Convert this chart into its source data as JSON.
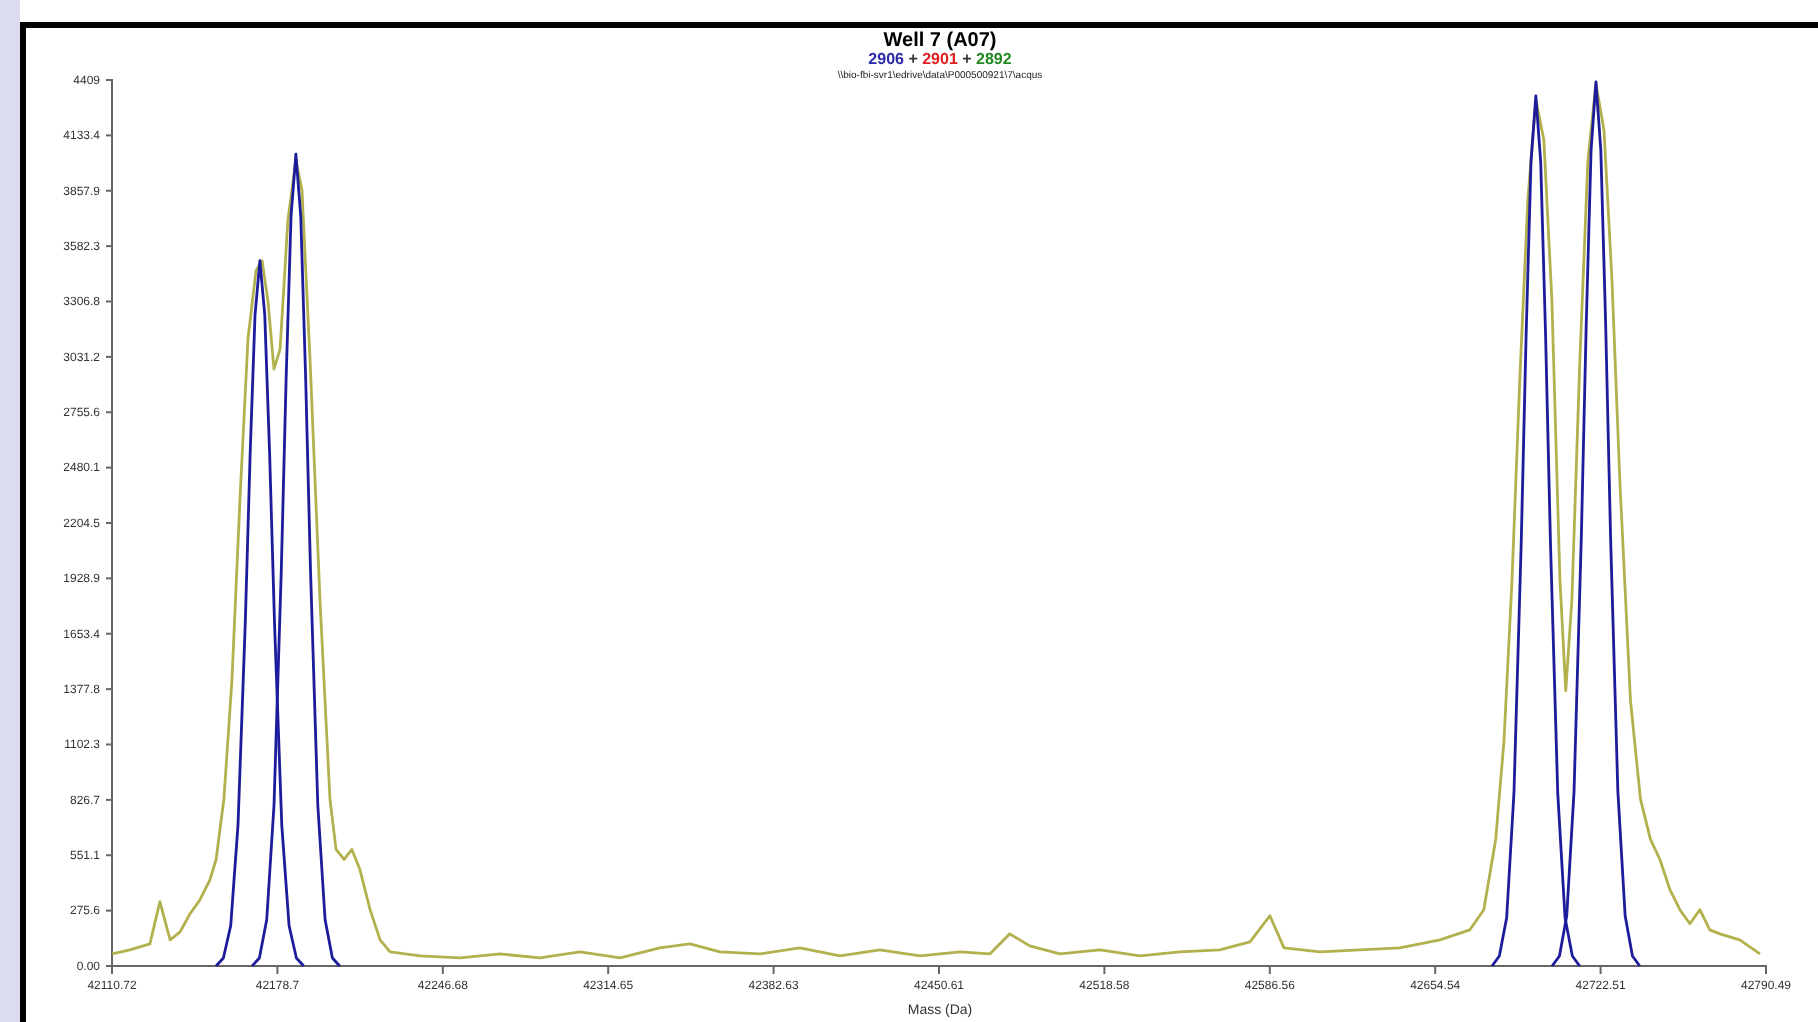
{
  "chart_data": {
    "type": "line",
    "title": "Well 7 (A07)",
    "subtitle": "2906 + 2901 + 2892",
    "annotations": [
      "\\\\bio-fbi-svr1\\edrive\\data\\P000500921\\7\\acqus"
    ],
    "xlabel": "Mass (Da)",
    "xlim": [
      42110.72,
      42790.49
    ],
    "xticks": [
      42110.72,
      42178.7,
      {
        "value": 42246.68,
        "label": "42246.68"
      },
      42314.65,
      42382.63,
      42450.61,
      42518.58,
      42586.56,
      42654.54,
      42722.51,
      42790.49
    ],
    "ylim": [
      0,
      4409
    ],
    "yticks": [
      {
        "value": 0,
        "label": "0.00"
      },
      275.6,
      551.1,
      826.7,
      1102.3,
      1377.8,
      1653.4,
      1928.9,
      2204.5,
      2480.1,
      2755.6,
      3031.2,
      3306.8,
      3582.3,
      3857.9,
      4133.4,
      4409
    ],
    "grid": false,
    "series": [
      {
        "color": "#b3b04e",
        "x": [
          42110.8,
          42118.1,
          42126.3,
          42130.4,
          42134.6,
          42138.7,
          42142.8,
          42146.9,
          42151.0,
          42153.5,
          42156.7,
          42160.0,
          42163.3,
          42166.6,
          42169.9,
          42172.4,
          42174.8,
          42177.3,
          42179.8,
          42183.0,
          42186.3,
          42188.8,
          42192.1,
          42196.2,
          42200.3,
          42202.8,
          42206.1,
          42209.3,
          42212.6,
          42216.8,
          42220.9,
          42225.0,
          42237.3,
          42253.7,
          42270.2,
          42286.6,
          42303.0,
          42319.5,
          42335.9,
          42348.2,
          42360.6,
          42377.0,
          42393.4,
          42409.9,
          42426.3,
          42442.8,
          42459.2,
          42471.5,
          42479.7,
          42487.9,
          42500.3,
          42516.7,
          42533.2,
          42549.6,
          42566.0,
          42578.4,
          42586.6,
          42592.4,
          42607.2,
          42623.6,
          42640.0,
          42656.5,
          42668.8,
          42674.5,
          42679.4,
          42682.8,
          42686.1,
          42689.3,
          42692.6,
          42695.9,
          42699.2,
          42702.5,
          42705.8,
          42708.2,
          42710.7,
          42714.0,
          42717.3,
          42720.6,
          42723.9,
          42727.2,
          42730.4,
          42734.8,
          42738.9,
          42743.0,
          42746.9,
          42751.0,
          42755.1,
          42759.2,
          42763.3,
          42767.4,
          42771.5,
          42779.7,
          42788.0
        ],
        "values": [
          60,
          80,
          110,
          320,
          130,
          170,
          260,
          330,
          430,
          530,
          830,
          1420,
          2320,
          3120,
          3460,
          3510,
          3310,
          2970,
          3070,
          3710,
          4010,
          3860,
          3020,
          1820,
          830,
          580,
          530,
          580,
          480,
          280,
          130,
          70,
          50,
          40,
          60,
          40,
          70,
          40,
          90,
          110,
          70,
          60,
          90,
          50,
          80,
          50,
          70,
          60,
          160,
          100,
          60,
          80,
          50,
          70,
          80,
          120,
          250,
          90,
          70,
          80,
          90,
          130,
          180,
          280,
          630,
          1120,
          1920,
          2920,
          3810,
          4310,
          4110,
          3310,
          1920,
          1370,
          1820,
          3020,
          4010,
          4390,
          4160,
          3410,
          2420,
          1320,
          830,
          630,
          530,
          380,
          280,
          210,
          280,
          180,
          160,
          130,
          60
        ]
      },
      {
        "color": "#1c1c9c",
        "x": [
          42153.5,
          42156.5,
          42159.5,
          42162.5,
          42165.5,
          42167.5,
          42169.5,
          42171.5,
          42173.5,
          42175.5,
          42177.5,
          42180.5,
          42183.5,
          42186.5,
          42189.5
        ],
        "values": [
          0,
          40,
          200,
          700,
          1710,
          2550,
          3240,
          3510,
          3240,
          2550,
          1710,
          700,
          200,
          40,
          0
        ]
      },
      {
        "color": "#1c1c9c",
        "x": [
          42168.3,
          42171.3,
          42174.3,
          42177.3,
          42180.3,
          42182.3,
          42184.3,
          42186.3,
          42188.3,
          42190.3,
          42192.3,
          42195.3,
          42198.3,
          42201.3,
          42204.3
        ],
        "values": [
          0,
          40,
          230,
          800,
          1970,
          2930,
          3730,
          4040,
          3730,
          2930,
          1970,
          800,
          230,
          40,
          0
        ]
      },
      {
        "color": "#1c1c9c",
        "x": [
          42677.9,
          42680.9,
          42683.9,
          42686.9,
          42689.9,
          42691.9,
          42693.9,
          42695.9,
          42697.9,
          42699.9,
          42701.9,
          42704.9,
          42707.9,
          42710.9,
          42713.9
        ],
        "values": [
          0,
          50,
          240,
          860,
          2110,
          3140,
          4000,
          4330,
          4000,
          3140,
          2110,
          860,
          240,
          50,
          0
        ]
      },
      {
        "color": "#1c1c9c",
        "x": [
          42702.6,
          42705.6,
          42708.6,
          42711.6,
          42714.6,
          42716.6,
          42718.6,
          42720.6,
          42722.6,
          42724.6,
          42726.6,
          42729.6,
          42732.6,
          42735.6,
          42738.6
        ],
        "values": [
          0,
          50,
          250,
          870,
          2140,
          3190,
          4060,
          4400,
          4060,
          3190,
          2140,
          870,
          250,
          50,
          0
        ]
      }
    ]
  }
}
